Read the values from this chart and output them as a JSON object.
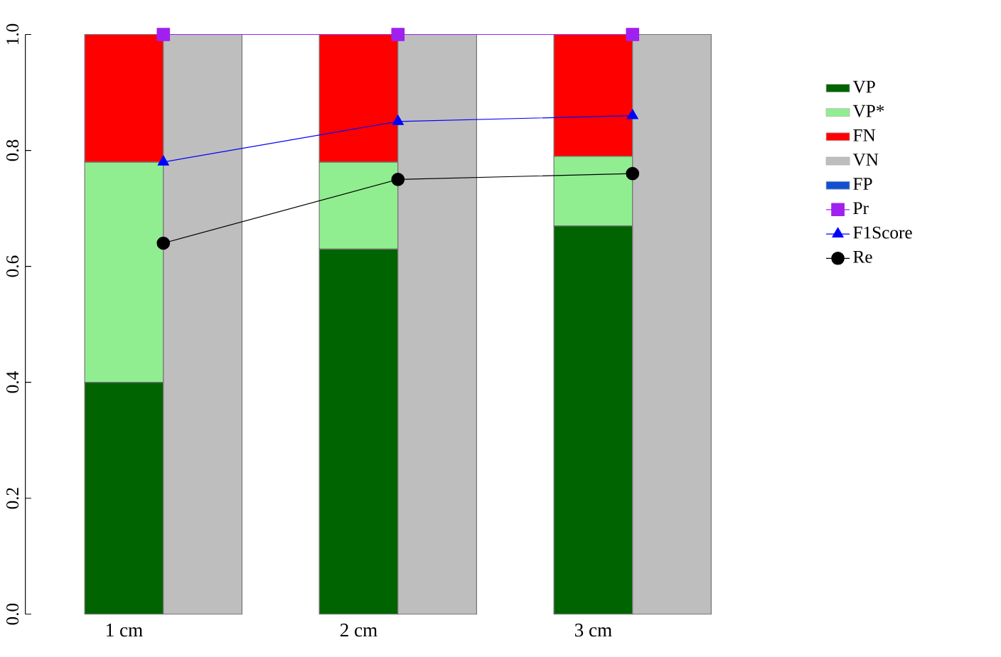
{
  "chart_data": {
    "type": "bar",
    "stacked": true,
    "categories": [
      "1 cm",
      null,
      "2 cm",
      null,
      "3 cm",
      null
    ],
    "series": [
      {
        "name": "VP",
        "color": "#006400",
        "values": [
          0.4,
          null,
          0.63,
          null,
          0.67,
          null
        ]
      },
      {
        "name": "VP*",
        "color": "#90ee90",
        "values": [
          0.38,
          null,
          0.15,
          null,
          0.12,
          null
        ]
      },
      {
        "name": "FN",
        "color": "#ff0000",
        "values": [
          0.22,
          null,
          0.22,
          null,
          0.21,
          null
        ]
      },
      {
        "name": "VN",
        "color": "#bebebe",
        "values": [
          null,
          1.0,
          null,
          1.0,
          null,
          1.0
        ]
      },
      {
        "name": "FP",
        "color": "#1050d0",
        "values": [
          null,
          0,
          null,
          0,
          null,
          0
        ]
      },
      {
        "name": "Pr",
        "type": "line",
        "color": "#a020f0",
        "marker": "square",
        "values": [
          1.0,
          null,
          1.0,
          null,
          1.0,
          null
        ]
      },
      {
        "name": "F1Score",
        "type": "line",
        "color": "#0000ff",
        "marker": "triangle",
        "values": [
          0.78,
          null,
          0.85,
          null,
          0.86,
          null
        ]
      },
      {
        "name": "Re",
        "type": "line",
        "color": "#000000",
        "marker": "circle",
        "values": [
          0.64,
          null,
          0.75,
          null,
          0.76,
          null
        ]
      }
    ],
    "ylim": [
      0,
      1
    ],
    "yticks": [
      {
        "value": 0,
        "label": "0.0"
      },
      {
        "value": 0.2,
        "label": "0.2"
      },
      {
        "value": 0.4,
        "label": "0.4"
      },
      {
        "value": 0.6,
        "label": "0.6"
      },
      {
        "value": 0.8,
        "label": "0.8"
      },
      {
        "value": 1,
        "label": "1.0"
      }
    ],
    "line_style": "solid",
    "grid": false,
    "legend": "right"
  }
}
